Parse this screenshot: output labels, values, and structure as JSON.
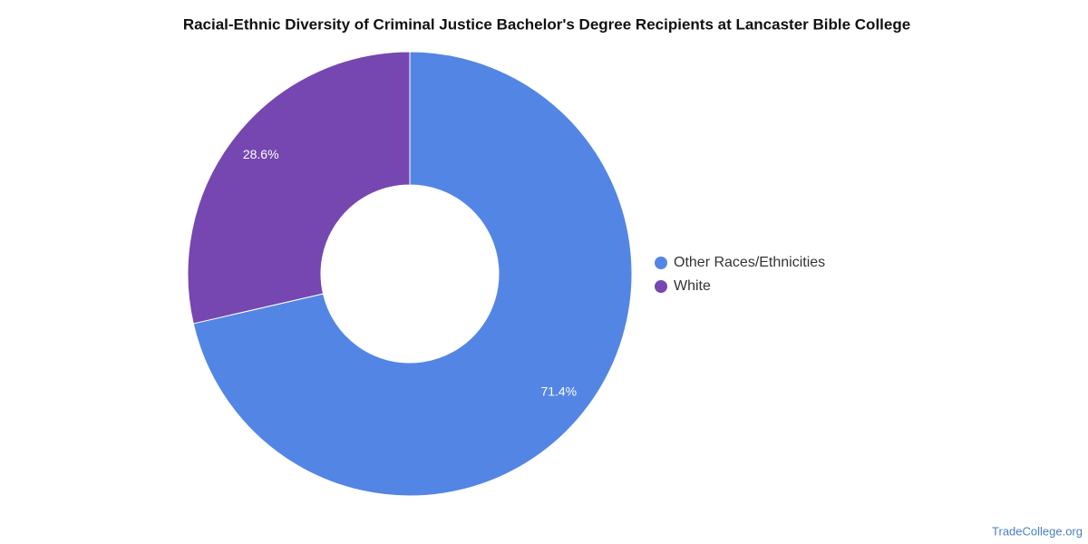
{
  "chart_data": {
    "type": "pie",
    "title": "Racial-Ethnic Diversity of Criminal Justice Bachelor's Degree Recipients at Lancaster Bible College",
    "categories": [
      "Other Races/Ethnicities",
      "White"
    ],
    "values": [
      71.4,
      28.6
    ],
    "value_labels": [
      "71.4%",
      "28.6%"
    ],
    "colors": [
      "#5386e4",
      "#7647b1"
    ],
    "legend": "right",
    "source": "TradeCollege.org"
  }
}
